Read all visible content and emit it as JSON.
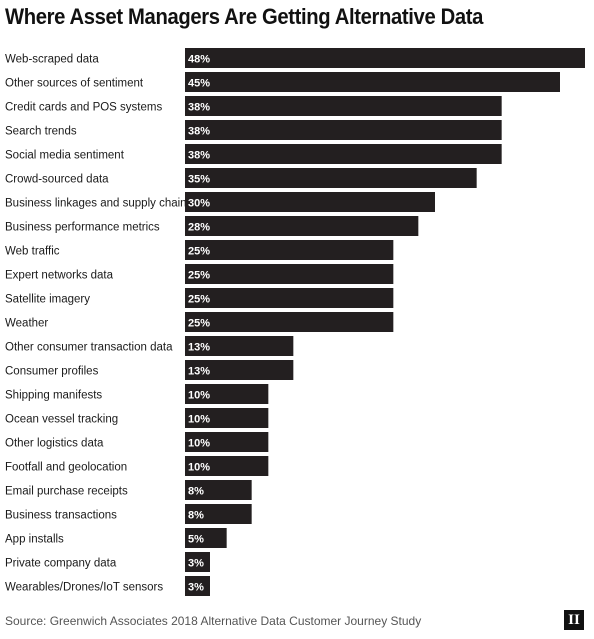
{
  "chart_data": {
    "type": "bar",
    "orientation": "horizontal",
    "title": "Where Asset Managers Are Getting Alternative Data",
    "source": "Source: Greenwich Associates 2018 Alternative Data Customer Journey Study",
    "logo_text": "II",
    "value_suffix": "%",
    "bar_color": "#231f20",
    "label_color": "#ffffff",
    "xlim": [
      0,
      48
    ],
    "categories": [
      "Web-scraped data",
      "Other sources of sentiment",
      "Credit cards and POS systems",
      "Search trends",
      "Social media sentiment",
      "Crowd-sourced data",
      "Business linkages and supply chain",
      "Business performance metrics",
      "Web traffic",
      "Expert networks data",
      "Satellite imagery",
      "Weather",
      "Other consumer transaction data",
      "Consumer profiles",
      "Shipping manifests",
      "Ocean vessel tracking",
      "Other logistics data",
      "Footfall and geolocation",
      "Email purchase receipts",
      "Business transactions",
      "App installs",
      "Private company data",
      "Wearables/Drones/IoT sensors"
    ],
    "values": [
      48,
      45,
      38,
      38,
      38,
      35,
      30,
      28,
      25,
      25,
      25,
      25,
      13,
      13,
      10,
      10,
      10,
      10,
      8,
      8,
      5,
      3,
      3
    ]
  }
}
